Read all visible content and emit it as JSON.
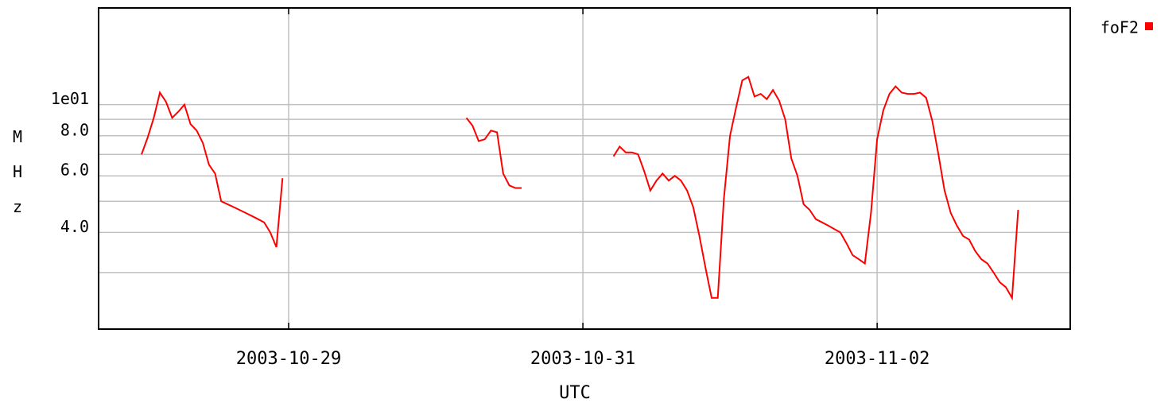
{
  "chart_data": {
    "type": "line",
    "x_label": "UTC",
    "y_label": "MHz",
    "log_y": true,
    "grid": true,
    "legend": "top-right",
    "xlim": [
      "2003-10-27T17:00",
      "2003-11-03T07:30"
    ],
    "xticks": [
      "2003-10-29",
      "2003-10-31",
      "2003-11-02"
    ],
    "ylim": [
      2,
      20
    ],
    "yticks": [
      {
        "value": 4,
        "label": "4.0"
      },
      {
        "value": 6,
        "label": "6.0"
      },
      {
        "value": 8,
        "label": "8.0"
      },
      {
        "value": 10,
        "label": "1e01"
      }
    ],
    "yminor": [
      3,
      5,
      7,
      9
    ],
    "x": [
      "2003-10-28T00:00",
      "2003-10-28T01:00",
      "2003-10-28T02:00",
      "2003-10-28T03:00",
      "2003-10-28T04:00",
      "2003-10-28T05:00",
      "2003-10-28T06:00",
      "2003-10-28T07:00",
      "2003-10-28T08:00",
      "2003-10-28T09:00",
      "2003-10-28T10:00",
      "2003-10-28T11:00",
      "2003-10-28T12:00",
      "2003-10-28T13:00",
      "2003-10-28T14:00",
      "2003-10-28T15:00",
      "2003-10-28T16:00",
      "2003-10-28T17:00",
      "2003-10-28T18:00",
      "2003-10-28T19:00",
      "2003-10-28T20:00",
      "2003-10-28T21:00",
      "2003-10-28T22:00",
      "2003-10-28T23:00",
      "2003-10-29T12:00",
      "2003-10-30T05:00",
      "2003-10-30T06:00",
      "2003-10-30T07:00",
      "2003-10-30T08:00",
      "2003-10-30T09:00",
      "2003-10-30T10:00",
      "2003-10-30T11:00",
      "2003-10-30T12:00",
      "2003-10-30T13:00",
      "2003-10-30T14:00",
      "2003-10-30T22:00",
      "2003-10-31T05:00",
      "2003-10-31T06:00",
      "2003-10-31T07:00",
      "2003-10-31T08:00",
      "2003-10-31T09:00",
      "2003-10-31T10:00",
      "2003-10-31T11:00",
      "2003-10-31T12:00",
      "2003-10-31T13:00",
      "2003-10-31T14:00",
      "2003-10-31T15:00",
      "2003-10-31T16:00",
      "2003-10-31T17:00",
      "2003-10-31T18:00",
      "2003-10-31T19:00",
      "2003-10-31T20:00",
      "2003-10-31T21:00",
      "2003-10-31T22:00",
      "2003-10-31T23:00",
      "2003-11-01T00:00",
      "2003-11-01T01:00",
      "2003-11-01T02:00",
      "2003-11-01T03:00",
      "2003-11-01T04:00",
      "2003-11-01T05:00",
      "2003-11-01T06:00",
      "2003-11-01T07:00",
      "2003-11-01T08:00",
      "2003-11-01T09:00",
      "2003-11-01T10:00",
      "2003-11-01T11:00",
      "2003-11-01T12:00",
      "2003-11-01T13:00",
      "2003-11-01T14:00",
      "2003-11-01T15:00",
      "2003-11-01T16:00",
      "2003-11-01T17:00",
      "2003-11-01T18:00",
      "2003-11-01T19:00",
      "2003-11-01T20:00",
      "2003-11-01T21:00",
      "2003-11-01T22:00",
      "2003-11-01T23:00",
      "2003-11-02T00:00",
      "2003-11-02T01:00",
      "2003-11-02T02:00",
      "2003-11-02T03:00",
      "2003-11-02T04:00",
      "2003-11-02T05:00",
      "2003-11-02T06:00",
      "2003-11-02T07:00",
      "2003-11-02T08:00",
      "2003-11-02T09:00",
      "2003-11-02T10:00",
      "2003-11-02T11:00",
      "2003-11-02T12:00",
      "2003-11-02T13:00",
      "2003-11-02T14:00",
      "2003-11-02T15:00",
      "2003-11-02T16:00",
      "2003-11-02T17:00",
      "2003-11-02T18:00",
      "2003-11-02T19:00",
      "2003-11-02T20:00",
      "2003-11-02T21:00",
      "2003-11-02T22:00",
      "2003-11-02T23:00"
    ],
    "series": [
      {
        "name": "foF2",
        "color": "#ff0000",
        "values": [
          7.0,
          7.9,
          9.1,
          10.9,
          10.2,
          9.1,
          9.5,
          10.0,
          8.7,
          8.3,
          7.6,
          6.5,
          6.1,
          5.0,
          4.9,
          4.8,
          4.7,
          4.6,
          4.5,
          4.4,
          4.3,
          4.0,
          3.6,
          5.9,
          null,
          9.1,
          8.6,
          7.7,
          7.8,
          8.3,
          8.2,
          6.1,
          5.6,
          5.5,
          5.5,
          null,
          6.9,
          7.4,
          7.1,
          7.1,
          7.0,
          6.2,
          5.4,
          5.8,
          6.1,
          5.8,
          6.0,
          5.8,
          5.4,
          4.8,
          3.9,
          3.1,
          2.5,
          2.5,
          5.1,
          8.0,
          9.8,
          11.9,
          12.2,
          10.6,
          10.8,
          10.4,
          11.1,
          10.3,
          9.0,
          6.8,
          6.0,
          4.9,
          4.7,
          4.4,
          4.3,
          4.2,
          4.1,
          4.0,
          3.7,
          3.4,
          3.3,
          3.2,
          4.6,
          7.8,
          9.6,
          10.8,
          11.4,
          10.9,
          10.8,
          10.8,
          10.9,
          10.5,
          8.9,
          7.0,
          5.4,
          4.6,
          4.2,
          3.9,
          3.8,
          3.5,
          3.3,
          3.2,
          3.0,
          2.8,
          2.7,
          2.5,
          4.7
        ]
      }
    ]
  }
}
